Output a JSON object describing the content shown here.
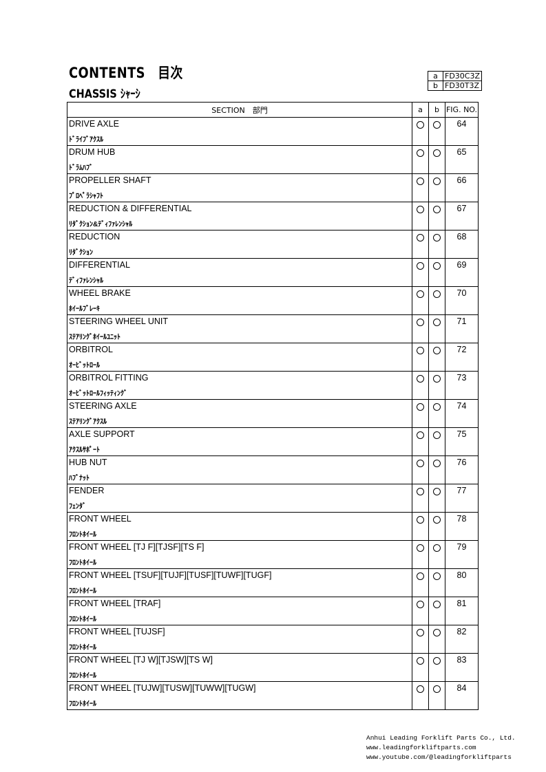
{
  "header": {
    "title": "CONTENTS　目次",
    "subtitle": "CHASSIS ｼｬｰｼ"
  },
  "models": [
    {
      "key": "a",
      "value": "FD30C3Z"
    },
    {
      "key": "b",
      "value": "FD30T3Z"
    }
  ],
  "table": {
    "headers": {
      "section": "SECTION　部門",
      "a": "a",
      "b": "b",
      "fig": "FIG. NO."
    },
    "rows": [
      {
        "en": "DRIVE AXLE",
        "jp": "ﾄﾞﾗｲﾌﾞｱｸｽﾙ",
        "a": true,
        "b": true,
        "fig": "64"
      },
      {
        "en": "DRUM HUB",
        "jp": "ﾄﾞﾗﾑﾊﾌﾞ",
        "a": true,
        "b": true,
        "fig": "65"
      },
      {
        "en": "PROPELLER SHAFT",
        "jp": "ﾌﾟﾛﾍﾟﾗｼｬﾌﾄ",
        "a": true,
        "b": true,
        "fig": "66"
      },
      {
        "en": "REDUCTION & DIFFERENTIAL",
        "jp": "ﾘﾀﾞｸｼｮﾝ&ﾃﾞｨﾌｧﾚﾝｼｬﾙ",
        "a": true,
        "b": true,
        "fig": "67"
      },
      {
        "en": "REDUCTION",
        "jp": "ﾘﾀﾞｸｼｮﾝ",
        "a": true,
        "b": true,
        "fig": "68"
      },
      {
        "en": "DIFFERENTIAL",
        "jp": "ﾃﾞｨﾌｧﾚﾝｼｬﾙ",
        "a": true,
        "b": true,
        "fig": "69"
      },
      {
        "en": "WHEEL BRAKE",
        "jp": "ﾎｲｰﾙﾌﾞﾚｰｷ",
        "a": true,
        "b": true,
        "fig": "70"
      },
      {
        "en": "STEERING WHEEL UNIT",
        "jp": "ｽﾃｱﾘﾝｸﾞﾎｲｰﾙﾕﾆｯﾄ",
        "a": true,
        "b": true,
        "fig": "71"
      },
      {
        "en": "ORBITROL",
        "jp": "ｵｰﾋﾞｯﾄﾛｰﾙ",
        "a": true,
        "b": true,
        "fig": "72"
      },
      {
        "en": "ORBITROL FITTING",
        "jp": "ｵｰﾋﾞｯﾄﾛｰﾙﾌｨｯﾃｨﾝｸﾞ",
        "a": true,
        "b": true,
        "fig": "73"
      },
      {
        "en": "STEERING AXLE",
        "jp": "ｽﾃｱﾘﾝｸﾞｱｸｽﾙ",
        "a": true,
        "b": true,
        "fig": "74"
      },
      {
        "en": "AXLE SUPPORT",
        "jp": "ｱｸｽﾙｻﾎﾟｰﾄ",
        "a": true,
        "b": true,
        "fig": "75"
      },
      {
        "en": "HUB NUT",
        "jp": "ﾊﾌﾞﾅｯﾄ",
        "a": true,
        "b": true,
        "fig": "76"
      },
      {
        "en": "FENDER",
        "jp": "ﾌｪﾝﾀﾞ",
        "a": true,
        "b": true,
        "fig": "77"
      },
      {
        "en": "FRONT WHEEL",
        "jp": "ﾌﾛﾝﾄﾎｲｰﾙ",
        "a": true,
        "b": true,
        "fig": "78"
      },
      {
        "en": "FRONT WHEEL [TJ F][TJSF][TS F]",
        "jp": "ﾌﾛﾝﾄﾎｲｰﾙ",
        "a": true,
        "b": true,
        "fig": "79"
      },
      {
        "en": "FRONT WHEEL [TSUF][TUJF][TUSF][TUWF][TUGF]",
        "jp": "ﾌﾛﾝﾄﾎｲｰﾙ",
        "a": true,
        "b": true,
        "fig": "80"
      },
      {
        "en": "FRONT WHEEL [TRAF]",
        "jp": "ﾌﾛﾝﾄﾎｲｰﾙ",
        "a": true,
        "b": true,
        "fig": "81"
      },
      {
        "en": "FRONT WHEEL [TUJSF]",
        "jp": "ﾌﾛﾝﾄﾎｲｰﾙ",
        "a": true,
        "b": true,
        "fig": "82"
      },
      {
        "en": "FRONT WHEEL [TJ W][TJSW][TS W]",
        "jp": "ﾌﾛﾝﾄﾎｲｰﾙ",
        "a": true,
        "b": true,
        "fig": "83"
      },
      {
        "en": "FRONT WHEEL [TUJW][TUSW][TUWW][TUGW]",
        "jp": "ﾌﾛﾝﾄﾎｲｰﾙ",
        "a": true,
        "b": true,
        "fig": "84"
      }
    ]
  },
  "footer": {
    "company": "Anhui Leading Forklift Parts Co., Ltd.",
    "website": "www.leadingforkliftparts.com",
    "youtube": "www.youtube.com/@leadingforkliftparts"
  }
}
